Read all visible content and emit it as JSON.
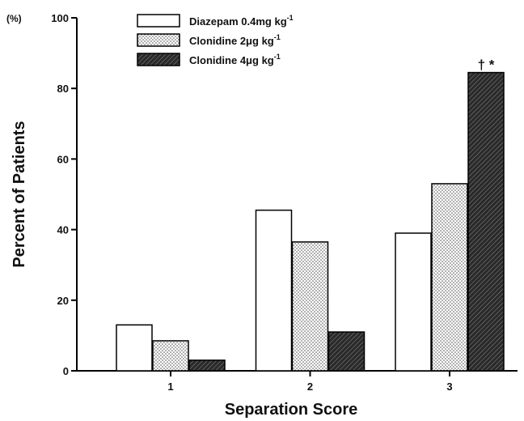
{
  "chart_data": {
    "type": "bar",
    "title": "",
    "xlabel": "Separation Score",
    "ylabel": "Percent of Patients",
    "y_unit": "(%)",
    "ylim": [
      0,
      100
    ],
    "yticks": [
      0,
      20,
      40,
      60,
      80,
      100
    ],
    "categories": [
      "1",
      "2",
      "3"
    ],
    "grid": false,
    "legend_position": "top-left",
    "series": [
      {
        "name": "Diazepam 0.4mg kg",
        "sup": "-1",
        "pattern": "white",
        "values": [
          13,
          45.5,
          39
        ]
      },
      {
        "name": "Clonidine 2μg kg",
        "sup": "-1",
        "pattern": "dotted",
        "values": [
          8.5,
          36.5,
          53
        ]
      },
      {
        "name": "Clonidine 4μg kg",
        "sup": "-1",
        "pattern": "dark-hatched",
        "values": [
          3,
          11,
          84.5
        ]
      }
    ],
    "annotations": [
      {
        "category": "3",
        "series": 2,
        "text": "† *"
      }
    ]
  }
}
